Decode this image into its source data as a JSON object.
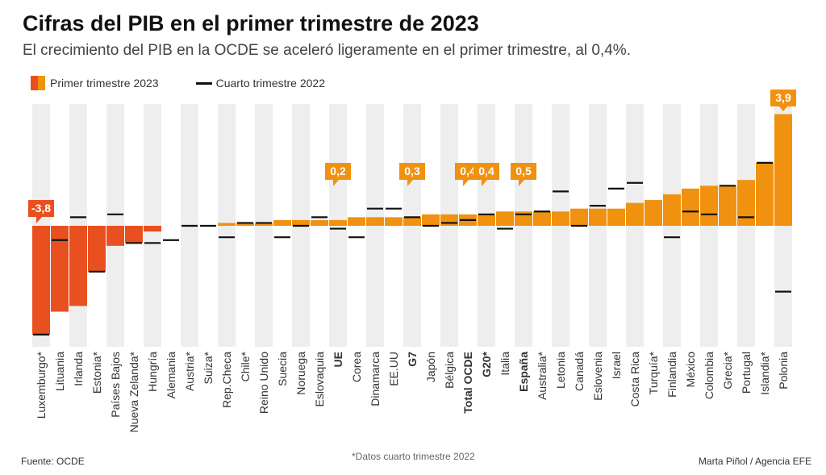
{
  "title": "Cifras del PIB en el primer trimestre de 2023",
  "subtitle": "El crecimiento del PIB en la OCDE se aceleró ligeramente en el primer trimestre, al 0,4%.",
  "legend": {
    "q1": "Primer trimestre 2023",
    "q4": "Cuarto trimestre 2022"
  },
  "colors": {
    "negative": "#e8501f",
    "positive": "#f0920f",
    "column_band": "#eeeeee",
    "q4_marker": "#111111"
  },
  "footer": {
    "source": "Fuente: OCDE",
    "note": "*Datos cuarto trimestre 2022",
    "credit": "Marta Piñol / Agencia EFE"
  },
  "chart_data": {
    "type": "bar",
    "title": "Cifras del PIB en el primer trimestre de 2023",
    "categories": [
      "Luxemburgo*",
      "Lituania",
      "Irlanda",
      "Estonia*",
      "Países Bajos",
      "Nueva Zelanda*",
      "Hungría",
      "Alemania",
      "Austria*",
      "Suiza*",
      "Rep.Checa",
      "Chile*",
      "Reino Unido",
      "Suecia",
      "Noruega",
      "Eslovaquia",
      "UE",
      "Corea",
      "Dinamarca",
      "EE.UU",
      "G7",
      "Japón",
      "Bélgica",
      "Total OCDE",
      "G20*",
      "Italia",
      "España",
      "Australia*",
      "Letonia",
      "Canadá",
      "Eslovenia",
      "Israel",
      "Costa Rica",
      "Turquía*",
      "Finlandia",
      "México",
      "Colombia",
      "Grecia*",
      "Portugal",
      "Islandia*",
      "Polonia"
    ],
    "bold_categories": [
      "UE",
      "G7",
      "Total OCDE",
      "G20*",
      "España"
    ],
    "series": [
      {
        "name": "Primer trimestre 2023",
        "values": [
          -3.8,
          -3.0,
          -2.8,
          -1.6,
          -0.7,
          -0.6,
          -0.2,
          0,
          0,
          0,
          0.1,
          0.1,
          0.1,
          0.2,
          0.2,
          0.2,
          0.2,
          0.3,
          0.3,
          0.3,
          0.3,
          0.4,
          0.4,
          0.4,
          0.4,
          0.5,
          0.5,
          0.5,
          0.5,
          0.6,
          0.6,
          0.6,
          0.8,
          0.9,
          1.1,
          1.3,
          1.4,
          1.4,
          1.6,
          2.2,
          3.9
        ]
      },
      {
        "name": "Cuarto trimestre 2022",
        "values": [
          -3.8,
          -0.5,
          0.3,
          -1.6,
          0.4,
          -0.6,
          -0.6,
          -0.5,
          0,
          0,
          -0.4,
          0.1,
          0.1,
          -0.4,
          0,
          0.3,
          -0.1,
          -0.4,
          0.6,
          0.6,
          0.3,
          0,
          0.1,
          0.2,
          0.4,
          -0.1,
          0.4,
          0.5,
          1.2,
          0,
          0.7,
          1.3,
          1.5,
          null,
          -0.4,
          0.5,
          0.4,
          1.4,
          0.3,
          2.2,
          -2.3
        ]
      }
    ],
    "data_labels": [
      {
        "category": "Luxemburgo*",
        "text": "-3,8"
      },
      {
        "category": "UE",
        "text": "0,2"
      },
      {
        "category": "G7",
        "text": "0,3"
      },
      {
        "category": "Total OCDE",
        "text": "0,4"
      },
      {
        "category": "G20*",
        "text": "0,4"
      },
      {
        "category": "España",
        "text": "0,5"
      },
      {
        "category": "Polonia",
        "text": "3,9"
      }
    ],
    "ylim": [
      -4.1,
      4.0
    ],
    "xlabel": "",
    "ylabel": "",
    "legend_position": "top-left",
    "grid": false
  }
}
